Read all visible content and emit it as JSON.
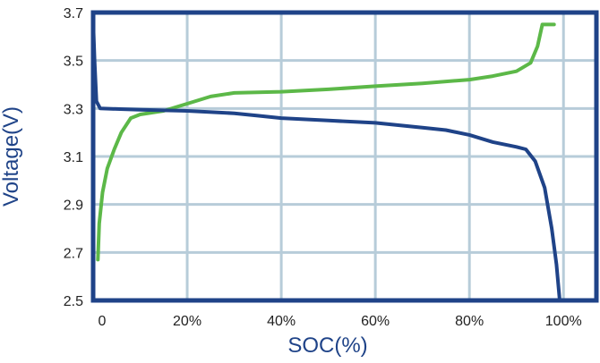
{
  "chart_data": {
    "type": "line",
    "title": "",
    "xlabel": "SOC(%)",
    "ylabel": "Voltage(V)",
    "xlim": [
      0,
      107
    ],
    "ylim": [
      2.5,
      3.7
    ],
    "x_ticks": [
      0,
      20,
      40,
      60,
      80,
      100
    ],
    "x_tick_labels": [
      "0",
      "20%",
      "40%",
      "60%",
      "80%",
      "100%"
    ],
    "y_ticks": [
      2.5,
      2.7,
      2.9,
      3.1,
      3.3,
      3.5,
      3.7
    ],
    "y_tick_labels": [
      "2.5",
      "2.7",
      "2.9",
      "3.1",
      "3.3",
      "3.5",
      "3.7"
    ],
    "grid": true,
    "series": [
      {
        "color": "#5cb848",
        "points": [
          [
            1,
            2.67
          ],
          [
            1.3,
            2.82
          ],
          [
            2,
            2.95
          ],
          [
            3,
            3.05
          ],
          [
            4.5,
            3.13
          ],
          [
            6,
            3.2
          ],
          [
            8,
            3.26
          ],
          [
            10,
            3.275
          ],
          [
            15,
            3.29
          ],
          [
            20,
            3.32
          ],
          [
            25,
            3.35
          ],
          [
            30,
            3.365
          ],
          [
            40,
            3.37
          ],
          [
            50,
            3.38
          ],
          [
            60,
            3.393
          ],
          [
            70,
            3.405
          ],
          [
            80,
            3.42
          ],
          [
            85,
            3.435
          ],
          [
            90,
            3.455
          ],
          [
            93,
            3.49
          ],
          [
            94.5,
            3.56
          ],
          [
            95.5,
            3.65
          ],
          [
            98,
            3.65
          ]
        ]
      },
      {
        "color": "#1f4388",
        "points": [
          [
            0,
            3.67
          ],
          [
            0.3,
            3.5
          ],
          [
            0.7,
            3.33
          ],
          [
            1.5,
            3.3
          ],
          [
            5,
            3.298
          ],
          [
            10,
            3.295
          ],
          [
            20,
            3.29
          ],
          [
            30,
            3.28
          ],
          [
            35,
            3.27
          ],
          [
            40,
            3.26
          ],
          [
            50,
            3.25
          ],
          [
            60,
            3.24
          ],
          [
            70,
            3.22
          ],
          [
            75,
            3.21
          ],
          [
            80,
            3.19
          ],
          [
            85,
            3.16
          ],
          [
            90,
            3.14
          ],
          [
            92,
            3.13
          ],
          [
            94,
            3.08
          ],
          [
            96,
            2.97
          ],
          [
            97.5,
            2.8
          ],
          [
            98.5,
            2.65
          ],
          [
            99.2,
            2.5
          ]
        ]
      }
    ],
    "colors": {
      "frame": "#1f4388",
      "grid": "#b7ccd9",
      "ylabel": "#1f4388",
      "xlabel": "#1f4388"
    }
  }
}
